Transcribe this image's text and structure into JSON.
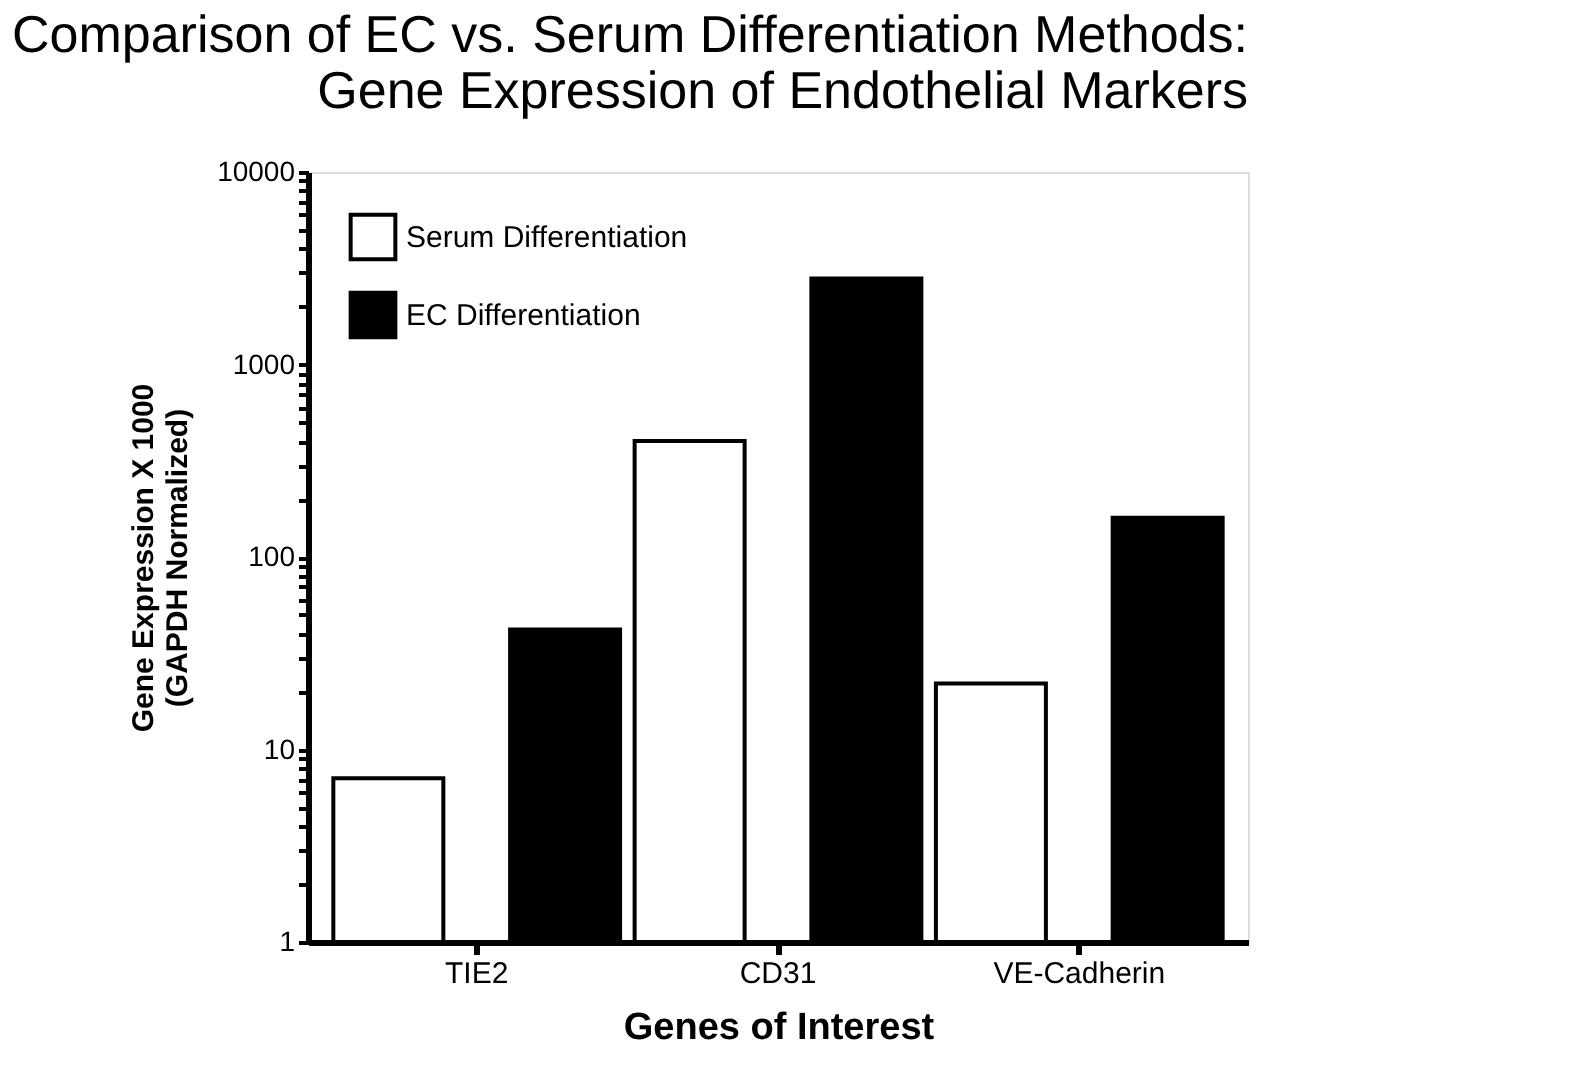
{
  "chart_data": {
    "type": "bar",
    "title": "Comparison of EC vs. Serum Differentiation Methods:\nGene Expression of Endothelial Markers",
    "xlabel": "Genes of Interest",
    "ylabel": "Gene Expression X 1000\n(GAPDH Normalized)",
    "categories": [
      "TIE2",
      "CD31",
      "VE-Cadherin"
    ],
    "series": [
      {
        "name": "Serum Differentiation",
        "color": "#ffffff",
        "values": [
          7.1,
          400,
          22
        ]
      },
      {
        "name": "EC Differentiation",
        "color": "#000000",
        "values": [
          42,
          2800,
          160
        ]
      }
    ],
    "log": true,
    "ylim": [
      1,
      10000
    ],
    "yticks": [
      1,
      {
        "value": 2,
        "label": null
      },
      {
        "value": 3,
        "label": null
      },
      {
        "value": 4,
        "label": null
      },
      {
        "value": 5,
        "label": null
      },
      {
        "value": 6,
        "label": null
      },
      {
        "value": 7,
        "label": null
      },
      {
        "value": 8,
        "label": null
      },
      {
        "value": 9,
        "label": null
      },
      10,
      {
        "value": 20,
        "label": null
      },
      {
        "value": 30,
        "label": null
      },
      {
        "value": 40,
        "label": null
      },
      {
        "value": 50,
        "label": null
      },
      {
        "value": 60,
        "label": null
      },
      {
        "value": 70,
        "label": null
      },
      {
        "value": 80,
        "label": null
      },
      {
        "value": 90,
        "label": null
      },
      100,
      {
        "value": 200,
        "label": null
      },
      {
        "value": 300,
        "label": null
      },
      {
        "value": 400,
        "label": null
      },
      {
        "value": 500,
        "label": null
      },
      {
        "value": 600,
        "label": null
      },
      {
        "value": 700,
        "label": null
      },
      {
        "value": 800,
        "label": null
      },
      {
        "value": 900,
        "label": null
      },
      1000,
      {
        "value": 2000,
        "label": null
      },
      {
        "value": 3000,
        "label": null
      },
      {
        "value": 4000,
        "label": null
      },
      {
        "value": 5000,
        "label": null
      },
      {
        "value": 6000,
        "label": null
      },
      {
        "value": 7000,
        "label": null
      },
      {
        "value": 8000,
        "label": null
      },
      {
        "value": 9000,
        "label": null
      },
      10000
    ],
    "grid": false,
    "legend": "top left"
  }
}
